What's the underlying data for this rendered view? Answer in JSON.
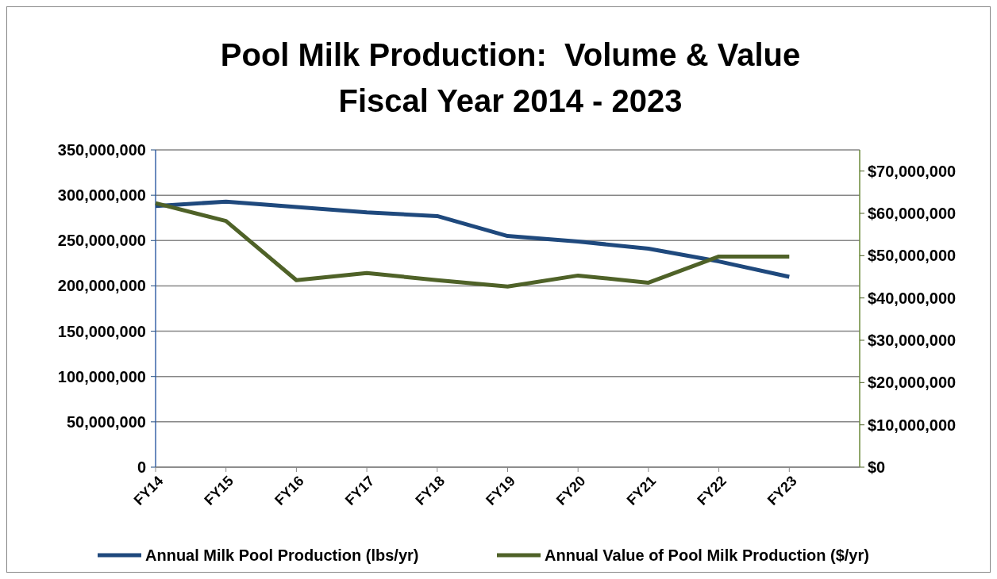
{
  "chart_data": {
    "type": "line",
    "title": "Pool Milk Production:  Volume & Value\nFiscal Year 2014 - 2023",
    "categories": [
      "FY14",
      "FY15",
      "FY16",
      "FY17",
      "FY18",
      "FY19",
      "FY20",
      "FY21",
      "FY22",
      "FY23"
    ],
    "series": [
      {
        "name": "Annual Milk Pool Production (lbs/yr)",
        "color": "#1f497d",
        "values": [
          288000000,
          293000000,
          287000000,
          281000000,
          277000000,
          255000000,
          249000000,
          241000000,
          227000000,
          210000000
        ]
      },
      {
        "name": "Annual Value of Pool Milk Production ($/yr)",
        "color": "#4f6228",
        "axis": "y2",
        "values": [
          62400000,
          58200000,
          44200000,
          45900000,
          44200000,
          42700000,
          45300000,
          43600000,
          49800000,
          49800000
        ]
      }
    ],
    "ylim": [
      0,
      350000000
    ],
    "yticks": [
      {
        "value": 0,
        "label": "0"
      },
      {
        "value": 50000000,
        "label": "50,000,000"
      },
      {
        "value": 100000000,
        "label": "100,000,000"
      },
      {
        "value": 150000000,
        "label": "150,000,000"
      },
      {
        "value": 200000000,
        "label": "200,000,000"
      },
      {
        "value": 250000000,
        "label": "250,000,000"
      },
      {
        "value": 300000000,
        "label": "300,000,000"
      },
      {
        "value": 350000000,
        "label": "350,000,000"
      }
    ],
    "y2lim": [
      0,
      75000000
    ],
    "y2ticks": [
      {
        "value": 0,
        "label": "$0"
      },
      {
        "value": 10000000,
        "label": "$10,000,000"
      },
      {
        "value": 20000000,
        "label": "$20,000,000"
      },
      {
        "value": 30000000,
        "label": "$30,000,000"
      },
      {
        "value": 40000000,
        "label": "$40,000,000"
      },
      {
        "value": 50000000,
        "label": "$50,000,000"
      },
      {
        "value": 60000000,
        "label": "$60,000,000"
      },
      {
        "value": 70000000,
        "label": "$70,000,000"
      }
    ],
    "grid": "y",
    "legend": "bottom",
    "marker": "none",
    "line_style": "solid"
  }
}
